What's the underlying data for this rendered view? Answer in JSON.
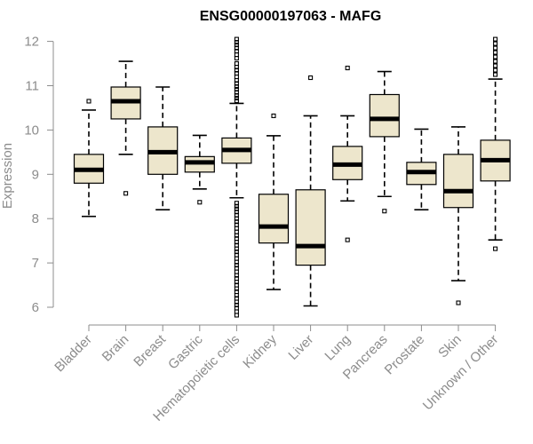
{
  "chart_data": {
    "type": "boxplot",
    "title": "ENSG00000197063 - MAFG",
    "xlabel": "",
    "ylabel": "Expression",
    "ylim": [
      5.9,
      12.1
    ],
    "yticks": [
      6,
      7,
      8,
      9,
      10,
      11,
      12
    ],
    "categories": [
      "Bladder",
      "Brain",
      "Breast",
      "Gastric",
      "Hematopoietic cells",
      "Kidney",
      "Liver",
      "Lung",
      "Pancreas",
      "Prostate",
      "Skin",
      "Unknown / Other"
    ],
    "boxes": [
      {
        "name": "Bladder",
        "min": 8.05,
        "q1": 8.8,
        "median": 9.1,
        "q3": 9.45,
        "max": 10.45,
        "outliers": [
          10.65
        ]
      },
      {
        "name": "Brain",
        "min": 9.45,
        "q1": 10.25,
        "median": 10.65,
        "q3": 10.97,
        "max": 11.55,
        "outliers": [
          8.57
        ]
      },
      {
        "name": "Breast",
        "min": 8.2,
        "q1": 9.0,
        "median": 9.5,
        "q3": 10.07,
        "max": 10.97,
        "outliers": []
      },
      {
        "name": "Gastric",
        "min": 8.67,
        "q1": 9.05,
        "median": 9.27,
        "q3": 9.4,
        "max": 9.88,
        "outliers": [
          8.37
        ]
      },
      {
        "name": "Hematopoietic cells",
        "min": 8.47,
        "q1": 9.25,
        "median": 9.55,
        "q3": 9.82,
        "max": 10.6,
        "outliers": [
          12.05,
          11.98,
          11.92,
          11.85,
          11.78,
          11.7,
          11.62,
          11.5,
          11.42,
          11.35,
          11.28,
          11.2,
          11.12,
          11.05,
          10.98,
          10.92,
          10.85,
          10.78,
          10.72,
          10.66,
          8.35,
          8.28,
          8.22,
          8.15,
          8.08,
          8.0,
          7.93,
          7.86,
          7.78,
          7.7,
          7.62,
          7.55,
          7.47,
          7.4,
          7.32,
          7.25,
          7.18,
          7.1,
          7.02,
          6.95,
          6.88,
          6.8,
          6.72,
          6.65,
          6.57,
          6.5,
          6.42,
          6.35,
          6.27,
          6.2,
          6.12,
          6.05,
          5.98,
          5.9,
          5.82
        ]
      },
      {
        "name": "Kidney",
        "min": 6.4,
        "q1": 7.45,
        "median": 7.82,
        "q3": 8.55,
        "max": 9.87,
        "outliers": [
          10.32
        ]
      },
      {
        "name": "Liver",
        "min": 6.03,
        "q1": 6.95,
        "median": 7.38,
        "q3": 8.65,
        "max": 10.32,
        "outliers": [
          11.18
        ]
      },
      {
        "name": "Lung",
        "min": 8.4,
        "q1": 8.88,
        "median": 9.22,
        "q3": 9.63,
        "max": 10.32,
        "outliers": [
          11.4,
          7.52
        ]
      },
      {
        "name": "Pancreas",
        "min": 8.5,
        "q1": 9.85,
        "median": 10.25,
        "q3": 10.8,
        "max": 11.32,
        "outliers": [
          8.17
        ]
      },
      {
        "name": "Prostate",
        "min": 8.2,
        "q1": 8.77,
        "median": 9.05,
        "q3": 9.27,
        "max": 10.02,
        "outliers": []
      },
      {
        "name": "Skin",
        "min": 6.6,
        "q1": 8.25,
        "median": 8.62,
        "q3": 9.45,
        "max": 10.07,
        "outliers": [
          6.1
        ]
      },
      {
        "name": "Unknown / Other",
        "min": 7.52,
        "q1": 8.85,
        "median": 9.32,
        "q3": 9.77,
        "max": 11.15,
        "outliers": [
          12.05,
          11.95,
          11.85,
          11.75,
          11.65,
          11.55,
          11.45,
          11.35,
          11.25,
          7.32
        ]
      }
    ]
  }
}
